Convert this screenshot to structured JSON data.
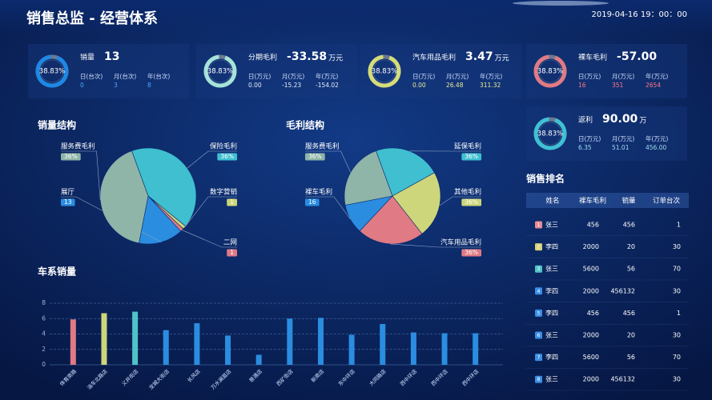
{
  "header": {
    "title": "销售总监 - 经营体系",
    "datetime": "2019-04-16 19：00：00"
  },
  "kpis": [
    {
      "percent": "38.83%",
      "label": "销量",
      "value": "13",
      "ring_color": "#1e88e5",
      "value_color": "#4fa3ff",
      "stats": [
        {
          "label": "日(台次)",
          "value": "0"
        },
        {
          "label": "月(台次)",
          "value": "3"
        },
        {
          "label": "年(台次)",
          "value": "8"
        }
      ]
    },
    {
      "percent": "38.83%",
      "label": "分期毛利",
      "value": "-33.58",
      "unit": "万元",
      "ring_color": "#a6e3da",
      "value_color": "#ffffff",
      "stats": [
        {
          "label": "日(万元)",
          "value": "0.00"
        },
        {
          "label": "月(万元)",
          "value": "-15.23"
        },
        {
          "label": "年(万元)",
          "value": "-154.02"
        }
      ]
    },
    {
      "percent": "38.83%",
      "label": "汽车用品毛利",
      "value": "3.47",
      "unit": "万元",
      "ring_color": "#d4dc7a",
      "value_color": "#e8ec9a",
      "stats": [
        {
          "label": "日(万元)",
          "value": "0.00"
        },
        {
          "label": "月(万元)",
          "value": "26.48"
        },
        {
          "label": "年(万元)",
          "value": "311.32"
        }
      ]
    },
    {
      "percent": "38.83%",
      "label": "裸车毛利",
      "value": "-57.00",
      "ring_color": "#e07a84",
      "value_color": "#ff7a86",
      "stats": [
        {
          "label": "日(万元)",
          "value": "16"
        },
        {
          "label": "月(万元)",
          "value": "351"
        },
        {
          "label": "年(万元)",
          "value": "2654"
        }
      ]
    },
    {
      "percent": "38.83%",
      "label": "返利",
      "value": "90.00",
      "unit": "万",
      "ring_color": "#3fc1d3",
      "value_color": "#9fdcf0",
      "stats": [
        {
          "label": "日(万元)",
          "value": "6.35"
        },
        {
          "label": "月(万元)",
          "value": "51.01"
        },
        {
          "label": "年(万元)",
          "value": "456.00"
        }
      ]
    }
  ],
  "chart_data": [
    {
      "type": "pie",
      "title": "销量结构",
      "categories": [
        "保险毛利",
        "数字营销",
        "二网",
        "展厅",
        "服务费毛利"
      ],
      "values": [
        36,
        1,
        1,
        13,
        36
      ],
      "value_labels": [
        "36%",
        "1",
        "1",
        "13",
        "36%"
      ],
      "colors": [
        "#3fbfd0",
        "#cdd67a",
        "#e07a84",
        "#2a8de0",
        "#8fb5a8"
      ]
    },
    {
      "type": "pie",
      "title": "毛利结构",
      "categories": [
        "延保毛利",
        "其他毛利",
        "汽车用品毛利",
        "裸车毛利",
        "服务费毛利"
      ],
      "values": [
        36,
        36,
        36,
        16,
        36
      ],
      "value_labels": [
        "36%",
        "36%",
        "36%",
        "16",
        "36%"
      ],
      "colors": [
        "#3fbfd0",
        "#cdd67a",
        "#e07a84",
        "#2a8de0",
        "#8fb5a8"
      ]
    },
    {
      "type": "bar",
      "title": "车系销量",
      "categories": [
        "体育南路",
        "油车北路店",
        "义井街店",
        "龙城大街店",
        "长风店",
        "万水澜庭店",
        "普通店",
        "西矿街店",
        "新南店",
        "东中环店",
        "大同路店",
        "西中环店",
        "西中环店",
        "西中环店"
      ],
      "values": [
        5.9,
        6.7,
        6.9,
        4.5,
        5.4,
        3.8,
        1.3,
        6.0,
        6.1,
        3.9,
        5.3,
        4.2,
        4.1,
        4.1
      ],
      "colors": [
        "#e07a84",
        "#cdd67a",
        "#4fc3c8",
        "#2a8de0",
        "#2a8de0",
        "#2a8de0",
        "#2a8de0",
        "#2a8de0",
        "#2a8de0",
        "#2a8de0",
        "#2a8de0",
        "#2a8de0",
        "#2a8de0",
        "#2a8de0"
      ],
      "ylim": [
        0,
        8
      ],
      "yticks": [
        0,
        2,
        4,
        6,
        8
      ],
      "grid": true
    }
  ],
  "table": {
    "title": "销售排名",
    "columns": [
      "姓名",
      "裸车毛利",
      "销量",
      "订单台次"
    ],
    "badge_colors": [
      "#e98b93",
      "#d7d27a",
      "#4fc3c8",
      "#3a8ee6",
      "#3a8ee6",
      "#3a8ee6",
      "#3a8ee6",
      "#3a8ee6"
    ],
    "rows": [
      [
        1,
        "张三",
        456,
        456,
        1
      ],
      [
        2,
        "李四",
        2000,
        20,
        30
      ],
      [
        3,
        "张三",
        5600,
        56,
        70
      ],
      [
        4,
        "李四",
        2000,
        456132,
        30
      ],
      [
        5,
        "李四",
        456,
        456,
        1
      ],
      [
        6,
        "张三",
        2000,
        20,
        30
      ],
      [
        7,
        "李四",
        5600,
        56,
        70
      ],
      [
        8,
        "张三",
        2000,
        456132,
        30
      ]
    ]
  }
}
